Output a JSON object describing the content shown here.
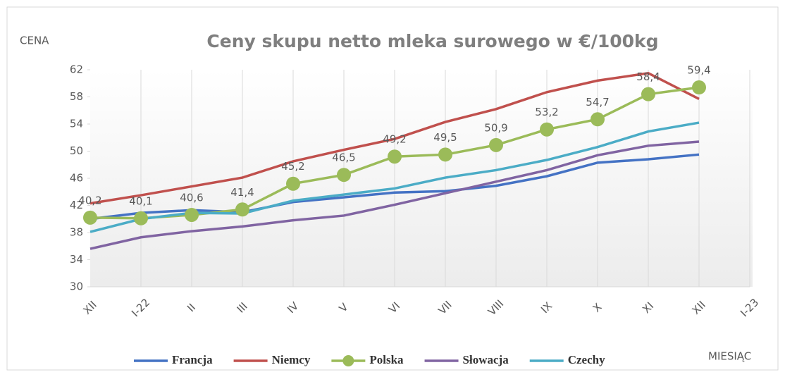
{
  "chart_data": {
    "type": "line",
    "title": "Ceny skupu netto mleka surowego  w €/100kg",
    "y_label": "CENA",
    "x_label": "MIESIĄC",
    "categories": [
      "XII",
      "I-22",
      "II",
      "III",
      "IV",
      "V",
      "VI",
      "VII",
      "VIII",
      "IX",
      "X",
      "XI",
      "XII",
      "I-23"
    ],
    "ylim": [
      30,
      62
    ],
    "yticks": [
      30,
      34,
      38,
      42,
      46,
      50,
      54,
      58,
      62
    ],
    "grid": "x",
    "legend": "bottom",
    "series": [
      {
        "name": "Francja",
        "color": "#4472c4",
        "values": [
          40.0,
          40.9,
          41.3,
          41.0,
          42.5,
          43.2,
          43.9,
          44.1,
          44.9,
          46.3,
          48.3,
          48.8,
          49.5,
          null
        ]
      },
      {
        "name": "Niemcy",
        "color": "#c0504d",
        "values": [
          42.3,
          43.5,
          44.8,
          46.1,
          48.5,
          50.2,
          51.8,
          54.3,
          56.2,
          58.7,
          60.4,
          61.5,
          57.7,
          null
        ]
      },
      {
        "name": "Polska",
        "color": "#9bbb59",
        "markers": true,
        "values": [
          40.2,
          40.1,
          40.6,
          41.4,
          45.2,
          46.5,
          49.2,
          49.5,
          50.9,
          53.2,
          54.7,
          58.4,
          59.4,
          null
        ],
        "value_labels": [
          "40,2",
          "40,1",
          "40,6",
          "41,4",
          "45,2",
          "46,5",
          "49,2",
          "49,5",
          "50,9",
          "53,2",
          "54,7",
          "58,4",
          "59,4",
          null
        ]
      },
      {
        "name": "Słowacja",
        "color": "#8064a2",
        "values": [
          35.6,
          37.3,
          38.2,
          38.9,
          39.8,
          40.5,
          42.1,
          43.8,
          45.5,
          47.2,
          49.4,
          50.8,
          51.4,
          null
        ]
      },
      {
        "name": "Czechy",
        "color": "#4bacc6",
        "values": [
          38.1,
          40.0,
          40.9,
          40.8,
          42.7,
          43.6,
          44.5,
          46.1,
          47.2,
          48.7,
          50.6,
          52.9,
          54.2,
          null
        ]
      }
    ]
  }
}
